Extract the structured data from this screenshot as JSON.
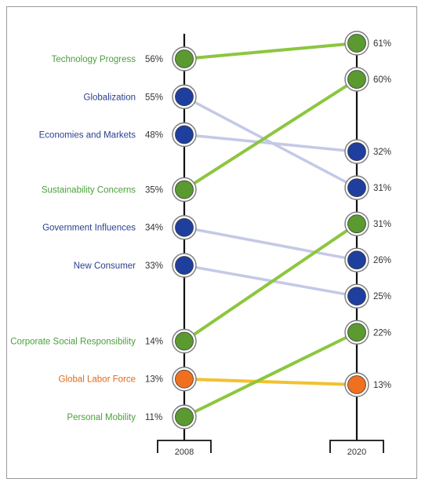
{
  "chart_data": {
    "type": "slope",
    "categories": [
      "2008",
      "2020"
    ],
    "series": [
      {
        "name": "Technology Progress",
        "group": "green",
        "values": [
          56,
          61
        ],
        "labels": [
          "56%",
          "61%"
        ]
      },
      {
        "name": "Globalization",
        "group": "blue",
        "values": [
          55,
          31
        ],
        "labels": [
          "55%",
          "31%"
        ]
      },
      {
        "name": "Economies and Markets",
        "group": "blue",
        "values": [
          48,
          32
        ],
        "labels": [
          "48%",
          "32%"
        ]
      },
      {
        "name": "Sustainability Concerns",
        "group": "green",
        "values": [
          35,
          60
        ],
        "labels": [
          "35%",
          "60%"
        ]
      },
      {
        "name": "Government Influences",
        "group": "blue",
        "values": [
          34,
          26
        ],
        "labels": [
          "34%",
          "26%"
        ]
      },
      {
        "name": "New Consumer",
        "group": "blue",
        "values": [
          33,
          25
        ],
        "labels": [
          "33%",
          "25%"
        ]
      },
      {
        "name": "Corporate Social Responsibility",
        "group": "green",
        "values": [
          14,
          31
        ],
        "labels": [
          "14%",
          "31%"
        ]
      },
      {
        "name": "Global Labor Force",
        "group": "orange",
        "values": [
          13,
          13
        ],
        "labels": [
          "13%",
          "13%"
        ]
      },
      {
        "name": "Personal Mobility",
        "group": "green",
        "values": [
          11,
          22
        ],
        "labels": [
          "11%",
          "22%"
        ]
      }
    ],
    "colors": {
      "green_text": "#4aa03a",
      "blue_text": "#2a3f8f",
      "orange_text": "#e06a1a",
      "green_node": "#5a9a30",
      "blue_node": "#1f3f9f",
      "orange_node": "#f07020",
      "green_line": "#8cc63f",
      "blue_line": "#c4c9e6",
      "orange_line": "#f2c12e",
      "axis": "#111111",
      "value_text": "#333333"
    }
  }
}
